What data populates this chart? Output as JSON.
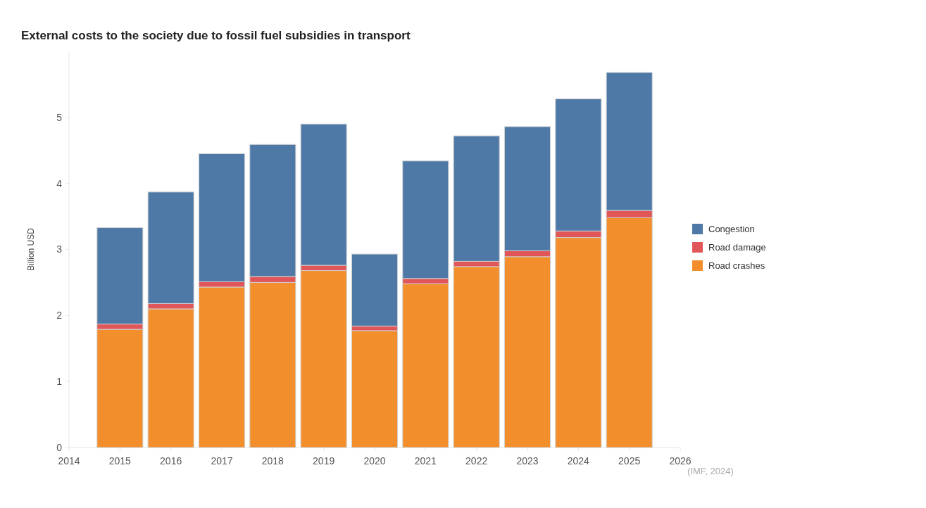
{
  "chart_data": {
    "type": "bar",
    "title": "External costs to the society due to fossil fuel subsidies in transport",
    "ylabel": "Billion USD",
    "annotations": [
      "(IMF, 2024)"
    ],
    "stacked": true,
    "legend": "right",
    "grid": false,
    "x": [
      2015,
      2016,
      2017,
      2018,
      2019,
      2020,
      2021,
      2022,
      2023,
      2024,
      2025
    ],
    "xlim": [
      2014,
      2026
    ],
    "xticks": [
      2014,
      2015,
      2016,
      2017,
      2018,
      2019,
      2020,
      2021,
      2022,
      2023,
      2024,
      2025,
      2026
    ],
    "ylim": [
      0,
      6
    ],
    "yticks": [
      0,
      1,
      2,
      3,
      4,
      5
    ],
    "series": [
      {
        "name": "Road crashes",
        "color": "#f28e2b",
        "values": [
          1.79,
          2.1,
          2.43,
          2.5,
          2.68,
          1.77,
          2.48,
          2.74,
          2.89,
          3.18,
          3.48
        ]
      },
      {
        "name": "Road damage",
        "color": "#e15759",
        "values": [
          0.08,
          0.08,
          0.08,
          0.09,
          0.08,
          0.07,
          0.08,
          0.08,
          0.09,
          0.1,
          0.11
        ]
      },
      {
        "name": "Congestion",
        "color": "#4e79a7",
        "values": [
          1.46,
          1.69,
          1.94,
          2.0,
          2.14,
          1.09,
          1.78,
          1.9,
          1.88,
          2.0,
          2.09
        ]
      }
    ]
  }
}
